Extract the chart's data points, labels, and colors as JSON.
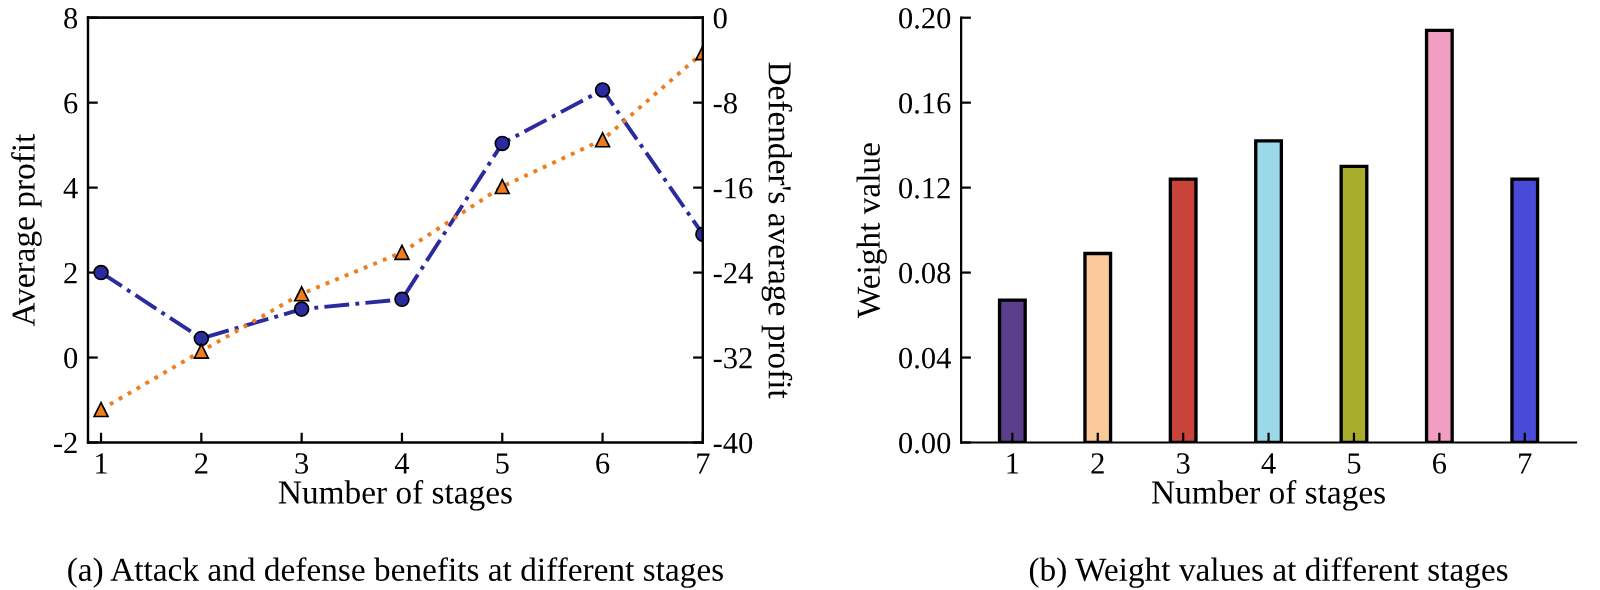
{
  "chart_data": [
    {
      "type": "line",
      "xlabel": "Number of stages",
      "ylabel": "Average profit",
      "y2label": "Defender's average profit",
      "annotations": [
        "(a) Attack and defense benefits at different stages"
      ],
      "x": [
        1,
        2,
        3,
        4,
        5,
        6,
        7
      ],
      "xlim": [
        0.87,
        7
      ],
      "xticks": [
        1,
        2,
        3,
        4,
        5,
        6,
        7
      ],
      "ylim": [
        -2,
        8
      ],
      "yticks": [
        -2,
        0,
        2,
        4,
        6,
        8
      ],
      "y2lim": [
        -40,
        0
      ],
      "y2ticks": [
        -40,
        -32,
        -24,
        -16,
        -8,
        0
      ],
      "grid": false,
      "legend": false,
      "series": [
        {
          "color": "#2b2ba0",
          "marker": "circle",
          "line_style": "dashdot",
          "values": [
            2.0,
            0.45,
            1.14,
            1.37,
            5.04,
            6.3,
            2.9
          ]
        },
        {
          "color": "#f07c1c",
          "marker": "triangle",
          "line_style": "dotted",
          "axis": "y2",
          "values": [
            -36.9,
            -31.4,
            -26.0,
            -22.1,
            -15.9,
            -11.5,
            -3.3
          ]
        }
      ]
    },
    {
      "type": "bar",
      "xlabel": "Number of stages",
      "ylabel": "Weight value",
      "annotations": [
        "(b) Weight values at different stages"
      ],
      "categories": [
        "1",
        "2",
        "3",
        "4",
        "5",
        "6",
        "7"
      ],
      "values": [
        0.067,
        0.089,
        0.124,
        0.142,
        0.13,
        0.194,
        0.124
      ],
      "colors": [
        "#5b3f8c",
        "#f9c99a",
        "#c8443a",
        "#9ad8ea",
        "#a8ad2c",
        "#f19ec2",
        "#4a4ad8"
      ],
      "ylim": [
        0,
        0.2
      ],
      "yticks": [
        {
          "value": 0,
          "label": "0.00"
        },
        {
          "value": 0.04,
          "label": "0.04"
        },
        {
          "value": 0.08,
          "label": "0.08"
        },
        {
          "value": 0.12,
          "label": "0.12"
        },
        {
          "value": 0.16,
          "label": "0.16"
        },
        {
          "value": 0.2,
          "label": "0.20"
        }
      ],
      "grid": false,
      "legend": false
    }
  ]
}
